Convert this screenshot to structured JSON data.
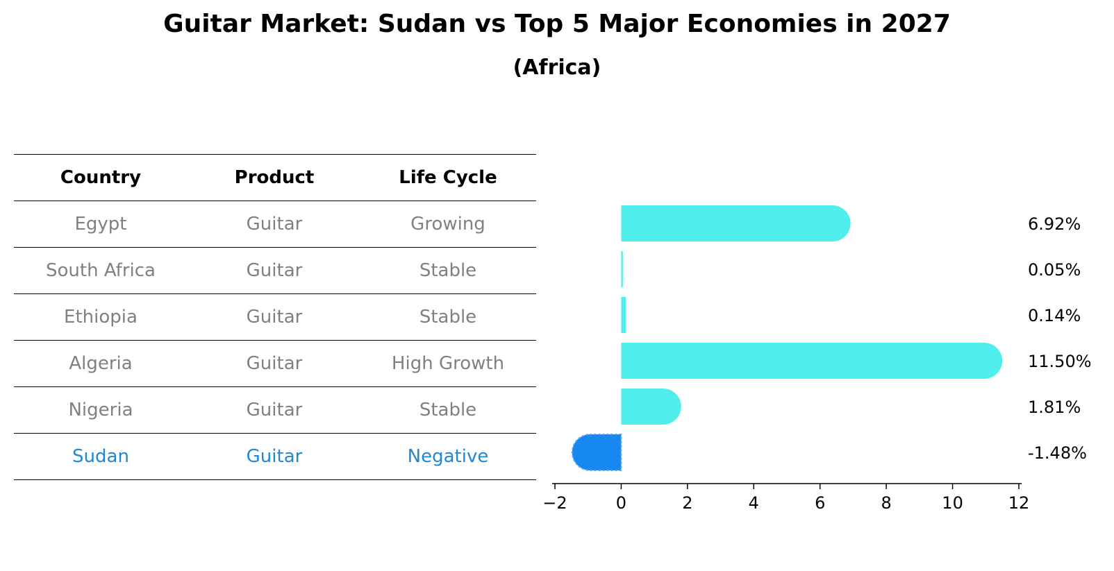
{
  "title": "Guitar Market: Sudan vs Top 5 Major Economies in 2027",
  "subtitle": "(Africa)",
  "colors": {
    "positive_bar": "#4FEDEB",
    "negative_bar": "#1787F2",
    "table_text": "#808080",
    "highlight_text": "#1E88D4"
  },
  "table": {
    "headers": [
      "Country",
      "Product",
      "Life Cycle"
    ],
    "rows": [
      [
        "Egypt",
        "Guitar",
        "Growing"
      ],
      [
        "South Africa",
        "Guitar",
        "Stable"
      ],
      [
        "Ethiopia",
        "Guitar",
        "Stable"
      ],
      [
        "Algeria",
        "Guitar",
        "High Growth"
      ],
      [
        "Nigeria",
        "Guitar",
        "Stable"
      ],
      [
        "Sudan",
        "Guitar",
        "Negative"
      ]
    ],
    "highlight_row": 5
  },
  "chart_data": {
    "type": "bar",
    "orientation": "horizontal",
    "categories": [
      "Egypt",
      "South Africa",
      "Ethiopia",
      "Algeria",
      "Nigeria",
      "Sudan"
    ],
    "values": [
      6.92,
      0.05,
      0.14,
      11.5,
      1.81,
      -1.48
    ],
    "value_labels": [
      "6.92%",
      "0.05%",
      "0.14%",
      "11.50%",
      "1.81%",
      "-1.48%"
    ],
    "xlim": [
      -2,
      12
    ],
    "xticks": [
      -2,
      0,
      2,
      4,
      6,
      8,
      10,
      12
    ],
    "xtick_labels": [
      "−2",
      "0",
      "2",
      "4",
      "6",
      "8",
      "10",
      "12"
    ],
    "title": "Guitar Market: Sudan vs Top 5 Major Economies in 2027",
    "xlabel": "",
    "ylabel": ""
  }
}
